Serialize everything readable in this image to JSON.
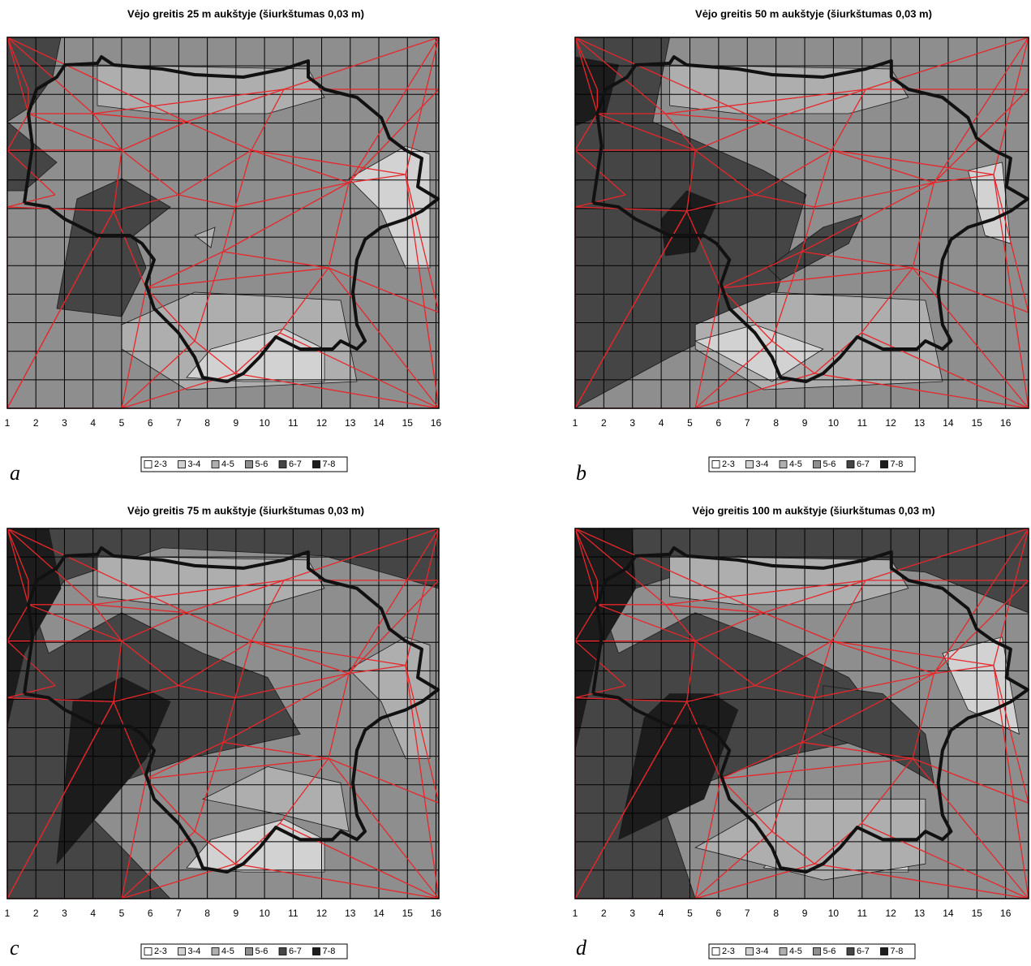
{
  "chart_data": [
    {
      "type": "contour",
      "title": "Vėjo greitis 25 m aukštyje (šiurkštumas 0,03 m)",
      "panel_label": "a",
      "xlim": [
        1,
        16.1
      ],
      "xticks": [
        1,
        2,
        3,
        4,
        5,
        6,
        7,
        8,
        9,
        10,
        11,
        12,
        13,
        14,
        15,
        16
      ],
      "legend": [
        {
          "label": "2-3",
          "color": "#ffffff"
        },
        {
          "label": "3-4",
          "color": "#d2d2d2"
        },
        {
          "label": "4-5",
          "color": "#aeaeae"
        },
        {
          "label": "5-6",
          "color": "#8e8e8e"
        },
        {
          "label": "6-7",
          "color": "#454545"
        },
        {
          "label": "7-8",
          "color": "#1c1c1c"
        }
      ]
    },
    {
      "type": "contour",
      "title": "Vėjo greitis 50 m aukštyje (šiurkštumas 0,03 m)",
      "panel_label": "b",
      "xlim": [
        1,
        16.8
      ],
      "xticks": [
        1,
        2,
        3,
        4,
        5,
        6,
        7,
        8,
        9,
        10,
        11,
        12,
        13,
        14,
        15,
        16
      ],
      "legend": [
        {
          "label": "2-3",
          "color": "#ffffff"
        },
        {
          "label": "3-4",
          "color": "#d2d2d2"
        },
        {
          "label": "4-5",
          "color": "#aeaeae"
        },
        {
          "label": "5-6",
          "color": "#8e8e8e"
        },
        {
          "label": "6-7",
          "color": "#454545"
        },
        {
          "label": "7-8",
          "color": "#1c1c1c"
        }
      ]
    },
    {
      "type": "contour",
      "title": "Vėjo greitis 75 m aukštyje (šiurkštumas 0,03 m)",
      "panel_label": "c",
      "xlim": [
        1,
        16.1
      ],
      "xticks": [
        1,
        2,
        3,
        4,
        5,
        6,
        7,
        8,
        9,
        10,
        11,
        12,
        13,
        14,
        15,
        16
      ],
      "legend": [
        {
          "label": "2-3",
          "color": "#ffffff"
        },
        {
          "label": "3-4",
          "color": "#d2d2d2"
        },
        {
          "label": "4-5",
          "color": "#aeaeae"
        },
        {
          "label": "5-6",
          "color": "#8e8e8e"
        },
        {
          "label": "6-7",
          "color": "#454545"
        },
        {
          "label": "7-8",
          "color": "#1c1c1c"
        }
      ]
    },
    {
      "type": "contour",
      "title": "Vėjo greitis 100 m aukštyje (šiurkštumas 0,03 m)",
      "panel_label": "d",
      "xlim": [
        1,
        16.8
      ],
      "xticks": [
        1,
        2,
        3,
        4,
        5,
        6,
        7,
        8,
        9,
        10,
        11,
        12,
        13,
        14,
        15,
        16
      ],
      "legend": [
        {
          "label": "2-3",
          "color": "#ffffff"
        },
        {
          "label": "3-4",
          "color": "#d2d2d2"
        },
        {
          "label": "4-5",
          "color": "#aeaeae"
        },
        {
          "label": "5-6",
          "color": "#8e8e8e"
        },
        {
          "label": "6-7",
          "color": "#454545"
        },
        {
          "label": "7-8",
          "color": "#1c1c1c"
        }
      ]
    }
  ]
}
